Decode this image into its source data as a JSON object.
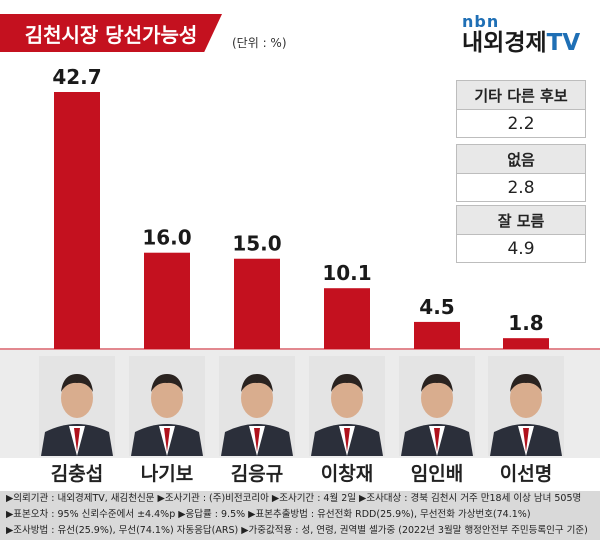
{
  "title": "김천시장 당선가능성",
  "unit": "(단위 : %)",
  "logo": {
    "top": "nbn",
    "bottom_main": "내외경제",
    "bottom_tv": "TV"
  },
  "colors": {
    "bar": "#c4111f",
    "accent": "#c4111f",
    "logo_blue": "#1f6fb5"
  },
  "side_stats": [
    {
      "label": "기타 다른 후보",
      "value": "2.2"
    },
    {
      "label": "없음",
      "value": "2.8"
    },
    {
      "label": "잘 모름",
      "value": "4.9"
    }
  ],
  "chart_data": {
    "type": "bar",
    "title": "김천시장 당선가능성",
    "unit": "%",
    "categories": [
      "김충섭",
      "나기보",
      "김응규",
      "이창재",
      "임인배",
      "이선명"
    ],
    "values": [
      42.7,
      16.0,
      15.0,
      10.1,
      4.5,
      1.8
    ],
    "value_labels": [
      "42.7",
      "16.0",
      "15.0",
      "10.1",
      "4.5",
      "1.8"
    ],
    "ylim": [
      0,
      42.7
    ],
    "grid": false,
    "legend": "none"
  },
  "footer": [
    "▶의뢰기관 : 내외경제TV, 새김천신문 ▶조사기관 : (주)비전코리아 ▶조사기간 : 4월 2일 ▶조사대상 : 경북 김천시 거주 만18세 이상 남녀 505명",
    "▶표본오차 : 95% 신뢰수준에서 ±4.4%p ▶응답률 : 9.5% ▶표본추출방법 : 유선전화 RDD(25.9%), 무선전화 가상번호(74.1%)",
    "▶조사방법 : 유선(25.9%), 무선(74.1%) 자동응답(ARS) ▶가중값적용 : 성, 연령, 권역별 셀가중 (2022년 3월말 행정안전부 주민등록인구 기준)"
  ]
}
